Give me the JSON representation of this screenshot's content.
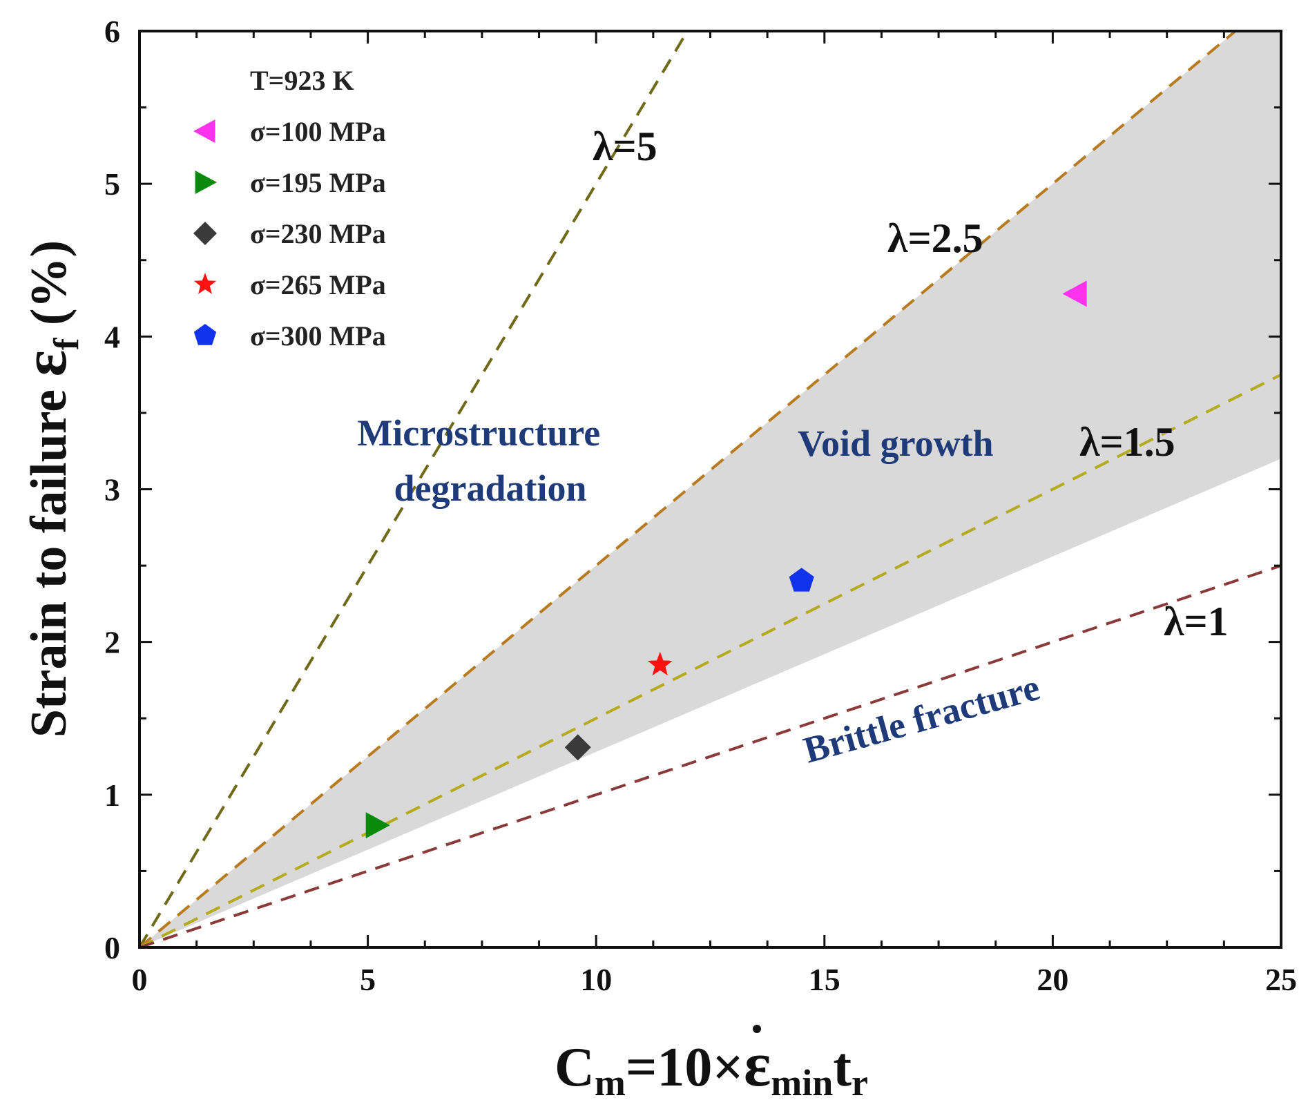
{
  "chart_data": {
    "type": "scatter",
    "xlim": [
      0,
      25
    ],
    "ylim": [
      0,
      6
    ],
    "x_ticks": [
      0,
      5,
      10,
      15,
      20,
      25
    ],
    "y_ticks": [
      0,
      1,
      2,
      3,
      4,
      5,
      6
    ],
    "xlabel": {
      "main": "C",
      "sub1": "m",
      "mid": "=10×",
      "eps": "ε",
      "sub2": "min",
      "t": "t",
      "sub3": "r"
    },
    "ylabel": {
      "main": "Strain to failure  ",
      "eps": "ε",
      "sub": "f",
      "unit": " (%)"
    },
    "legend_title": "T=923 K",
    "series": [
      {
        "name": "σ=100 MPa",
        "marker": "triangle-left",
        "color": "#ff33ee",
        "x": [
          20.5
        ],
        "y": [
          4.28
        ]
      },
      {
        "name": "σ=195 MPa",
        "marker": "triangle-right",
        "color": "#0a8a0a",
        "x": [
          5.2
        ],
        "y": [
          0.8
        ]
      },
      {
        "name": "σ=230 MPa",
        "marker": "diamond",
        "color": "#3a3a3a",
        "x": [
          9.6
        ],
        "y": [
          1.31
        ]
      },
      {
        "name": "σ=265 MPa",
        "marker": "star",
        "color": "#ff1111",
        "x": [
          11.4
        ],
        "y": [
          1.85
        ]
      },
      {
        "name": "σ=300 MPa",
        "marker": "pentagon",
        "color": "#1133ee",
        "x": [
          14.5
        ],
        "y": [
          2.4
        ]
      }
    ],
    "reference_lines": [
      {
        "label": "λ=5",
        "slope": 0.5,
        "color": "#6e6a18"
      },
      {
        "label": "λ=2.5",
        "slope": 0.25,
        "color": "#b87a1e"
      },
      {
        "label": "λ=1.5",
        "slope": 0.15,
        "color": "#b5aa1a"
      },
      {
        "label": "λ=1",
        "slope": 0.1,
        "color": "#8b3a3a"
      }
    ],
    "shaded_region": {
      "upper_slope": 0.25,
      "lower_slope": 0.128,
      "color": "#d9d9d9"
    },
    "annotations": [
      {
        "id": "microstructure",
        "lines": [
          "Microstructure",
          "degradation"
        ]
      },
      {
        "id": "void",
        "lines": [
          "Void growth"
        ]
      },
      {
        "id": "brittle",
        "lines": [
          "Brittle fracture"
        ]
      }
    ]
  }
}
